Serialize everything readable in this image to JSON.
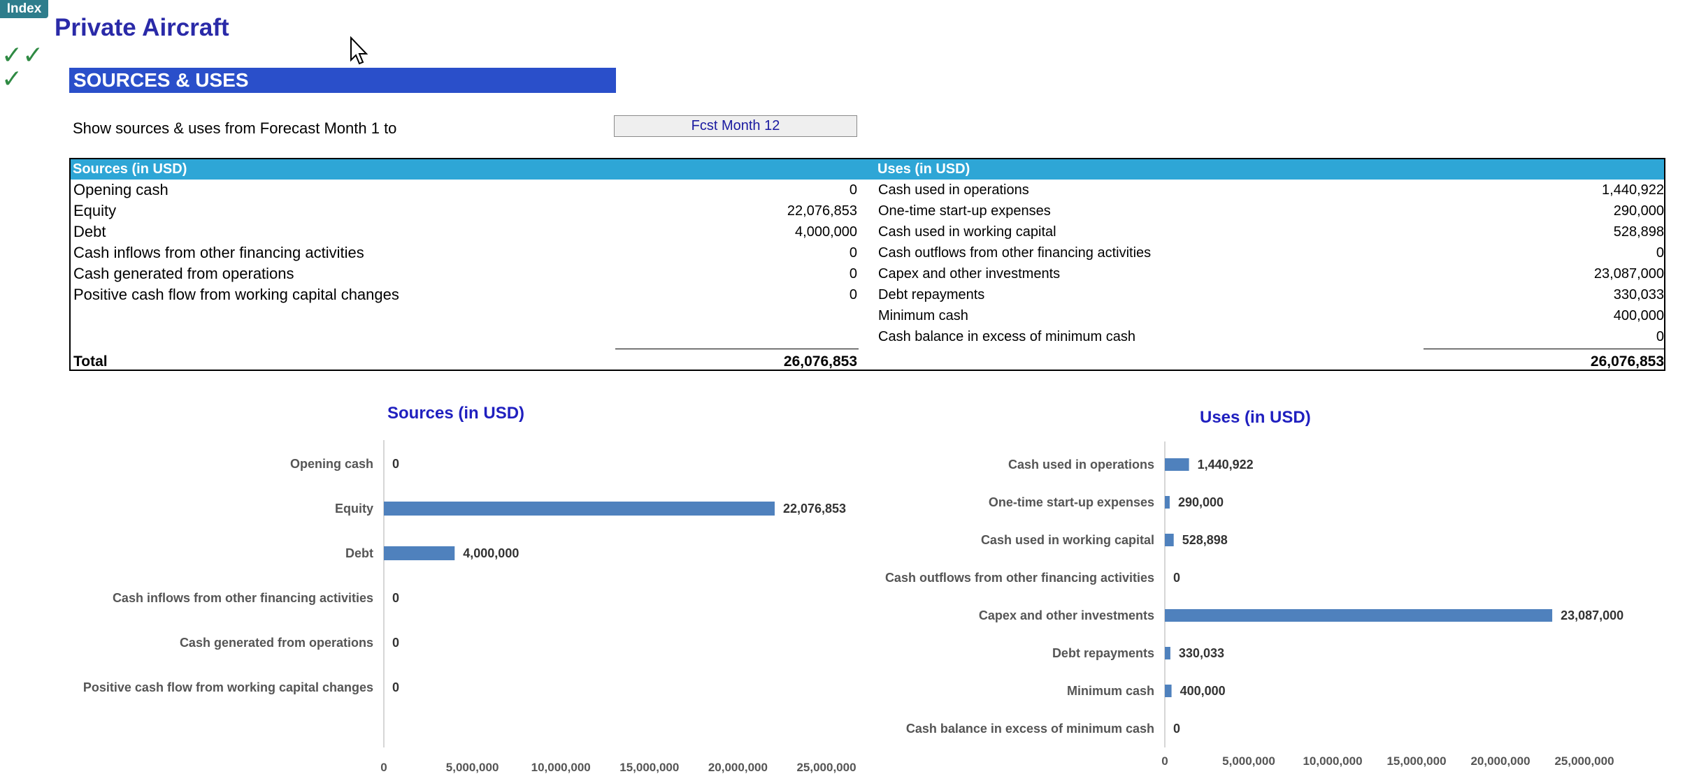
{
  "app": {
    "index_button": "Index",
    "title": "Private Aircraft",
    "checks": [
      "✓✓",
      "✓"
    ]
  },
  "section": {
    "banner": "SOURCES & USES"
  },
  "filter": {
    "label": "Show sources & uses from Forecast Month 1 to",
    "selected": "Fcst Month 12"
  },
  "table": {
    "sources_header": "Sources (in USD)",
    "uses_header": "Uses (in USD)",
    "sources": [
      {
        "label": "Opening cash",
        "value": "0"
      },
      {
        "label": "Equity",
        "value": "22,076,853"
      },
      {
        "label": "Debt",
        "value": "4,000,000"
      },
      {
        "label": "Cash inflows from other financing activities",
        "value": "0"
      },
      {
        "label": "Cash generated from operations",
        "value": "0"
      },
      {
        "label": "Positive cash flow from working capital changes",
        "value": "0"
      }
    ],
    "uses": [
      {
        "label": "Cash used in operations",
        "value": "1,440,922"
      },
      {
        "label": "One-time start-up expenses",
        "value": "290,000"
      },
      {
        "label": "Cash used in working capital",
        "value": "528,898"
      },
      {
        "label": "Cash outflows from other  financing activities",
        "value": "0"
      },
      {
        "label": "Capex and other investments",
        "value": "23,087,000"
      },
      {
        "label": "Debt repayments",
        "value": "330,033"
      },
      {
        "label": "Minimum cash",
        "value": "400,000"
      },
      {
        "label": "Cash balance in excess of minimum cash",
        "value": "0"
      }
    ],
    "total_label": "Total",
    "sources_total": "26,076,853",
    "uses_total": "26,076,853"
  },
  "chart_data": [
    {
      "type": "bar",
      "orientation": "horizontal",
      "title": "Sources (in USD)",
      "categories": [
        "Opening cash",
        "Equity",
        "Debt",
        "Cash inflows from other financing activities",
        "Cash generated from operations",
        "Positive cash flow from working capital changes"
      ],
      "values": [
        0,
        22076853,
        4000000,
        0,
        0,
        0
      ],
      "data_labels": [
        "0",
        "22,076,853",
        "4,000,000",
        "0",
        "0",
        "0"
      ],
      "xlim": [
        0,
        25000000
      ],
      "x_ticks": [
        "0",
        "5,000,000",
        "10,000,000",
        "15,000,000",
        "20,000,000",
        "25,000,000"
      ],
      "color": "#4f81bd",
      "grid": false,
      "legend": "none"
    },
    {
      "type": "bar",
      "orientation": "horizontal",
      "title": "Uses (in USD)",
      "categories": [
        "Cash used in operations",
        "One-time start-up expenses",
        "Cash used in working capital",
        "Cash outflows from other  financing activities",
        "Capex and other investments",
        "Debt repayments",
        "Minimum cash",
        "Cash balance in excess of minimum cash"
      ],
      "values": [
        1440922,
        290000,
        528898,
        0,
        23087000,
        330033,
        400000,
        0
      ],
      "data_labels": [
        "1,440,922",
        "290,000",
        "528,898",
        "0",
        "23,087,000",
        "330,033",
        "400,000",
        "0"
      ],
      "xlim": [
        0,
        25000000
      ],
      "x_ticks": [
        "0",
        "5,000,000",
        "10,000,000",
        "15,000,000",
        "20,000,000",
        "25,000,000"
      ],
      "color": "#4f81bd",
      "grid": false,
      "legend": "none"
    }
  ]
}
